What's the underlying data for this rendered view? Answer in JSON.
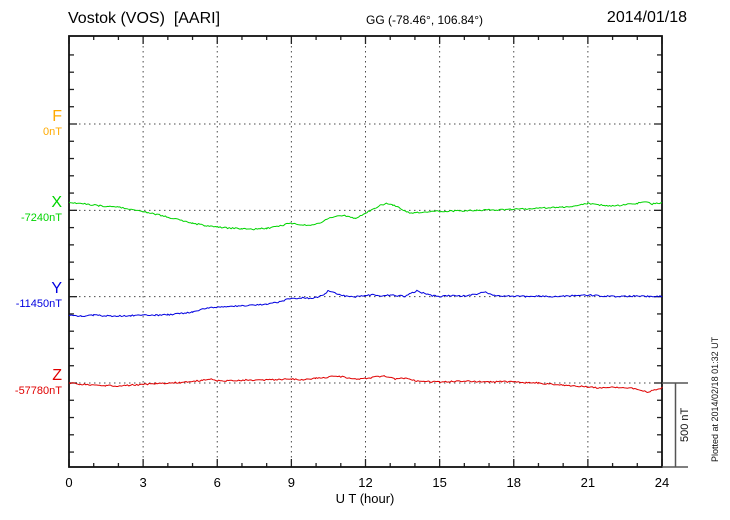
{
  "header": {
    "title": "Vostok (VOS)  [AARI]",
    "coordinates": "GG (-78.46°, 106.84°)",
    "date": "2014/01/18"
  },
  "plot": {
    "xlabel": "U T (hour)",
    "x_ticks": [
      "0",
      "3",
      "6",
      "9",
      "12",
      "15",
      "18",
      "21",
      "24"
    ],
    "scale_bar_label": "500 nT",
    "plotted_at": "Plotted at 2014/02/18 01:32 UT"
  },
  "chart_data": {
    "type": "line",
    "title": "Vostok (VOS) [AARI] magnetogram, 2014/01/18",
    "xlabel": "U T (hour)",
    "x_range": [
      0,
      24
    ],
    "x_major_tick_hours": 3,
    "x_minor_tick_hours": 1,
    "y_division_nT": 500,
    "y_minor_tick_nT": 100,
    "grid": "dotted horizontal baselines per component, dotted vertical every 3 h",
    "legend_position": "left",
    "values_unit": "nT offset from each component baseline",
    "series": [
      {
        "name": "F",
        "value_label": "0nT",
        "color": "#ffaa00",
        "points": []
      },
      {
        "name": "X",
        "value_label": "-7240nT",
        "color": "#00d400",
        "points": [
          [
            0,
            46
          ],
          [
            0.4,
            42
          ],
          [
            0.8,
            34
          ],
          [
            1.2,
            27
          ],
          [
            1.6,
            22
          ],
          [
            2,
            17
          ],
          [
            2.4,
            9
          ],
          [
            2.8,
            -2
          ],
          [
            3.2,
            -12
          ],
          [
            3.6,
            -25
          ],
          [
            4,
            -40
          ],
          [
            4.5,
            -56
          ],
          [
            5,
            -75
          ],
          [
            5.5,
            -87
          ],
          [
            6,
            -96
          ],
          [
            6.5,
            -103
          ],
          [
            7,
            -107
          ],
          [
            7.5,
            -110
          ],
          [
            8,
            -104
          ],
          [
            8.5,
            -92
          ],
          [
            8.9,
            -75
          ],
          [
            9.3,
            -81
          ],
          [
            9.6,
            -86
          ],
          [
            9.9,
            -87
          ],
          [
            10.2,
            -70
          ],
          [
            10.5,
            -44
          ],
          [
            10.8,
            -35
          ],
          [
            11.1,
            -29
          ],
          [
            11.4,
            -39
          ],
          [
            11.6,
            -46
          ],
          [
            11.8,
            -32
          ],
          [
            12,
            -14
          ],
          [
            12.3,
            5
          ],
          [
            12.6,
            28
          ],
          [
            12.9,
            41
          ],
          [
            13.1,
            30
          ],
          [
            13.4,
            12
          ],
          [
            13.6,
            -5
          ],
          [
            13.8,
            -17
          ],
          [
            14.1,
            -12
          ],
          [
            14.5,
            -8
          ],
          [
            15,
            -6
          ],
          [
            15.5,
            -4
          ],
          [
            16,
            -3
          ],
          [
            16.5,
            0
          ],
          [
            17,
            2
          ],
          [
            17.5,
            3
          ],
          [
            18,
            6
          ],
          [
            18.5,
            9
          ],
          [
            19,
            12
          ],
          [
            19.5,
            16
          ],
          [
            20,
            20
          ],
          [
            20.5,
            24
          ],
          [
            21,
            40
          ],
          [
            21.3,
            34
          ],
          [
            21.7,
            29
          ],
          [
            22.1,
            25
          ],
          [
            22.5,
            34
          ],
          [
            23,
            41
          ],
          [
            23.3,
            50
          ],
          [
            23.6,
            37
          ],
          [
            24,
            44
          ]
        ]
      },
      {
        "name": "Y",
        "value_label": "-11450nT",
        "color": "#0000e0",
        "points": [
          [
            0,
            -110
          ],
          [
            0.5,
            -113
          ],
          [
            1,
            -108
          ],
          [
            1.5,
            -111
          ],
          [
            2,
            -113
          ],
          [
            2.5,
            -110
          ],
          [
            3,
            -108
          ],
          [
            3.5,
            -107
          ],
          [
            4,
            -105
          ],
          [
            4.5,
            -98
          ],
          [
            5,
            -90
          ],
          [
            5.3,
            -76
          ],
          [
            5.6,
            -65
          ],
          [
            6,
            -60
          ],
          [
            6.5,
            -57
          ],
          [
            7,
            -52
          ],
          [
            7.5,
            -49
          ],
          [
            8,
            -45
          ],
          [
            8.4,
            -34
          ],
          [
            8.7,
            -22
          ],
          [
            9,
            -10
          ],
          [
            9.4,
            -7
          ],
          [
            9.7,
            -9
          ],
          [
            10,
            -5
          ],
          [
            10.3,
            10
          ],
          [
            10.5,
            34
          ],
          [
            10.7,
            28
          ],
          [
            11,
            7
          ],
          [
            11.3,
            3
          ],
          [
            11.6,
            0
          ],
          [
            12,
            6
          ],
          [
            12.3,
            12
          ],
          [
            12.6,
            3
          ],
          [
            13,
            9
          ],
          [
            13.3,
            6
          ],
          [
            13.6,
            3
          ],
          [
            13.9,
            22
          ],
          [
            14.1,
            34
          ],
          [
            14.4,
            17
          ],
          [
            14.7,
            6
          ],
          [
            15,
            1
          ],
          [
            15.4,
            6
          ],
          [
            15.8,
            3
          ],
          [
            16.2,
            8
          ],
          [
            16.5,
            14
          ],
          [
            16.8,
            28
          ],
          [
            17.1,
            12
          ],
          [
            17.5,
            3
          ],
          [
            18,
            3
          ],
          [
            18.5,
            1
          ],
          [
            19,
            3
          ],
          [
            19.5,
            1
          ],
          [
            20,
            3
          ],
          [
            20.5,
            6
          ],
          [
            21,
            9
          ],
          [
            21.5,
            5
          ],
          [
            22,
            1
          ],
          [
            22.5,
            3
          ],
          [
            23,
            4
          ],
          [
            23.5,
            1
          ],
          [
            24,
            3
          ]
        ]
      },
      {
        "name": "Z",
        "value_label": "-57780nT",
        "color": "#e00000",
        "points": [
          [
            0,
            0
          ],
          [
            0.5,
            -7
          ],
          [
            1,
            -12
          ],
          [
            1.5,
            -15
          ],
          [
            2,
            -17
          ],
          [
            2.5,
            -12
          ],
          [
            3,
            -9
          ],
          [
            3.5,
            -3
          ],
          [
            4,
            0
          ],
          [
            4.5,
            3
          ],
          [
            5,
            7
          ],
          [
            5.4,
            17
          ],
          [
            5.7,
            23
          ],
          [
            6,
            15
          ],
          [
            6.4,
            12
          ],
          [
            6.8,
            15
          ],
          [
            7.2,
            17
          ],
          [
            7.6,
            15
          ],
          [
            8,
            17
          ],
          [
            8.5,
            20
          ],
          [
            9,
            23
          ],
          [
            9.5,
            20
          ],
          [
            10,
            28
          ],
          [
            10.4,
            32
          ],
          [
            10.7,
            40
          ],
          [
            11.1,
            35
          ],
          [
            11.4,
            29
          ],
          [
            11.8,
            23
          ],
          [
            12.1,
            29
          ],
          [
            12.4,
            35
          ],
          [
            12.8,
            40
          ],
          [
            13.2,
            23
          ],
          [
            13.6,
            29
          ],
          [
            14,
            13
          ],
          [
            14.5,
            9
          ],
          [
            15,
            6
          ],
          [
            15.5,
            9
          ],
          [
            16,
            12
          ],
          [
            16.5,
            9
          ],
          [
            17,
            6
          ],
          [
            17.5,
            8
          ],
          [
            18,
            6
          ],
          [
            18.5,
            3
          ],
          [
            19,
            0
          ],
          [
            19.5,
            -6
          ],
          [
            20,
            -12
          ],
          [
            20.5,
            -17
          ],
          [
            21,
            -23
          ],
          [
            21.5,
            -29
          ],
          [
            22,
            -23
          ],
          [
            22.6,
            -29
          ],
          [
            23,
            -35
          ],
          [
            23.4,
            -52
          ],
          [
            23.7,
            -40
          ],
          [
            24,
            -29
          ]
        ]
      }
    ]
  }
}
